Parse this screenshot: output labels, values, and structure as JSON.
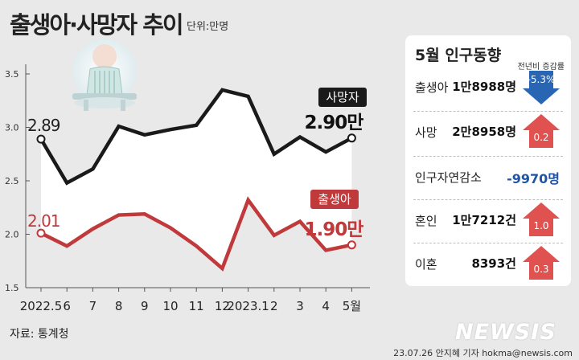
{
  "title": "출생아·사망자 추이",
  "unit": "단위:만명",
  "source": "자료: 통계청",
  "credit": "23.07.26 안지혜 기자 hokma@newsis.com",
  "watermark": "NEWSIS",
  "colors": {
    "deaths": "#1a1a1a",
    "births": "#c0393b",
    "up": "#e05250",
    "down": "#2866b4"
  },
  "chart_data": {
    "type": "line",
    "categories": [
      "2022.5",
      "6",
      "7",
      "8",
      "9",
      "10",
      "11",
      "12",
      "2023.1",
      "2",
      "3",
      "4",
      "5월"
    ],
    "series": [
      {
        "name": "사망자",
        "values": [
          2.89,
          2.48,
          2.61,
          3.01,
          2.93,
          2.98,
          3.02,
          3.35,
          3.29,
          2.75,
          2.91,
          2.77,
          2.9
        ]
      },
      {
        "name": "출생아",
        "values": [
          2.01,
          1.89,
          2.05,
          2.18,
          2.19,
          2.06,
          1.89,
          1.68,
          2.32,
          1.99,
          2.12,
          1.85,
          1.9
        ]
      }
    ],
    "yticks": [
      "3.5",
      "3.0",
      "2.5",
      "2.0",
      "1.5"
    ],
    "ylim": [
      1.5,
      3.5
    ],
    "start_labels": {
      "deaths": "2.89",
      "births": "2.01"
    },
    "end_labels": {
      "deaths": "2.90만",
      "births": "1.90만"
    },
    "fill_between": true,
    "grid": false
  },
  "panel": {
    "title": "5월 인구동향",
    "subtitle": "전년비 증감률",
    "rows": [
      {
        "label": "출생아",
        "value": "1만8988명",
        "change": "-5.3%",
        "direction": "down"
      },
      {
        "label": "사망",
        "value": "2만8958명",
        "change": "0.2",
        "direction": "up"
      },
      {
        "label": "인구자연감소",
        "value": "-9970명",
        "change": "",
        "direction": "none"
      },
      {
        "label": "혼인",
        "value": "1만7212건",
        "change": "1.0",
        "direction": "up"
      },
      {
        "label": "이혼",
        "value": "8393건",
        "change": "0.3",
        "direction": "up"
      }
    ]
  }
}
